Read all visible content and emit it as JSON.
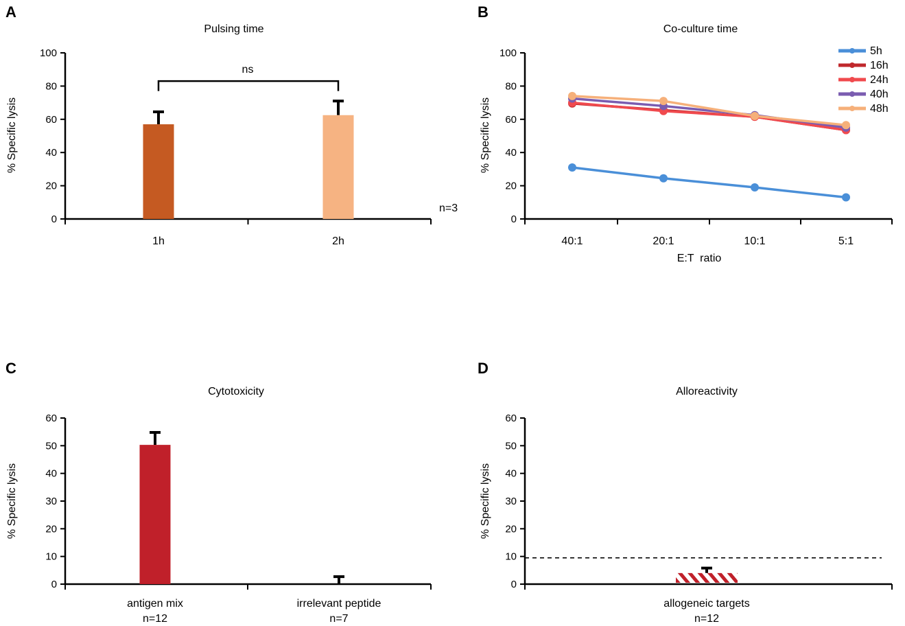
{
  "chart_data": [
    {
      "panel": "A",
      "type": "bar",
      "title": "Pulsing time",
      "ylabel": "% Specific lysis",
      "xlabel": "",
      "ylim": [
        0,
        100
      ],
      "yticks": [
        "0",
        "20",
        "40",
        "60",
        "80",
        "100"
      ],
      "categories": [
        "1h",
        "2h"
      ],
      "values": [
        57,
        62.5
      ],
      "errors": [
        7.5,
        8.5
      ],
      "colors": [
        "#c55a22",
        "#f6b382"
      ],
      "significance": "ns",
      "note": "n=3"
    },
    {
      "panel": "B",
      "type": "line",
      "title": "Co-culture time",
      "ylabel": "% Specific lysis",
      "xlabel": "E:T  ratio",
      "ylim": [
        0,
        100
      ],
      "yticks": [
        "0",
        "20",
        "40",
        "60",
        "80",
        "100"
      ],
      "categories": [
        "40:1",
        "20:1",
        "10:1",
        "5:1"
      ],
      "series": [
        {
          "name": "5h",
          "color": "#4a8fd8",
          "values": [
            31,
            24.5,
            19,
            13
          ]
        },
        {
          "name": "16h",
          "color": "#c0282c",
          "values": [
            69.5,
            65.5,
            61.5,
            53.5
          ]
        },
        {
          "name": "24h",
          "color": "#f04a4e",
          "values": [
            70,
            65,
            61.5,
            53.5
          ]
        },
        {
          "name": "40h",
          "color": "#7a5cb0",
          "values": [
            72.5,
            68,
            62.5,
            55
          ]
        },
        {
          "name": "48h",
          "color": "#f6b07a",
          "values": [
            74,
            71,
            62,
            56.5
          ]
        }
      ]
    },
    {
      "panel": "C",
      "type": "bar",
      "title": "Cytotoxicity",
      "ylabel": "% Specific lysis",
      "ylim": [
        0,
        60
      ],
      "yticks": [
        "0",
        "10",
        "20",
        "30",
        "40",
        "50",
        "60"
      ],
      "categories": [
        "antigen mix",
        "irrelevant peptide"
      ],
      "sublabels": [
        "n=12",
        "n=7"
      ],
      "values": [
        50.3,
        0
      ],
      "errors": [
        4.5,
        2.7
      ],
      "colors": [
        "#c0202a",
        "#c0202a"
      ]
    },
    {
      "panel": "D",
      "type": "bar",
      "title": "Alloreactivity",
      "ylabel": "% Specific lysis",
      "ylim": [
        0,
        60
      ],
      "yticks": [
        "0",
        "10",
        "20",
        "30",
        "40",
        "50",
        "60"
      ],
      "categories": [
        "allogeneic targets"
      ],
      "sublabels": [
        "n=12"
      ],
      "values": [
        4
      ],
      "errors": [
        1.8
      ],
      "colors": [
        "#c0202a"
      ],
      "pattern": "hatched",
      "threshold": 9.5
    }
  ]
}
